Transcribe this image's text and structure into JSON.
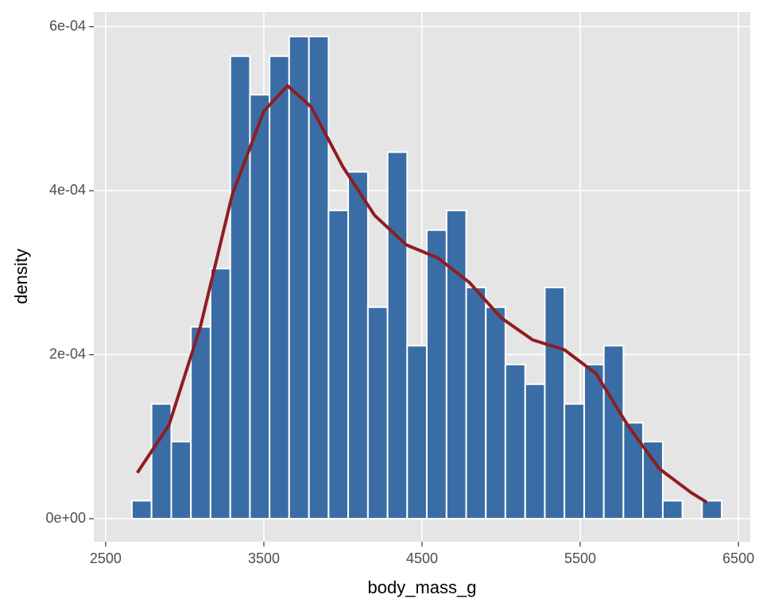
{
  "chart_data": {
    "type": "histogram",
    "xlabel": "body_mass_g",
    "ylabel": "density",
    "bins": [
      2666,
      2790,
      2915,
      3039,
      3163,
      3288,
      3412,
      3536,
      3660,
      3785,
      3909,
      4033,
      4158,
      4282,
      4406,
      4530,
      4655,
      4779,
      4903,
      5027,
      5152,
      5276,
      5400,
      5525,
      5649,
      5773,
      5897,
      6022,
      6146,
      6270,
      6394
    ],
    "counts": [
      2.2e-05,
      0.00014,
      9.4e-05,
      0.000234,
      0.000305,
      0.000564,
      0.000517,
      0.000564,
      0.000588,
      0.000588,
      0.000376,
      0.000423,
      0.000258,
      0.000447,
      0.000211,
      0.000352,
      0.000376,
      0.000282,
      0.000258,
      0.000188,
      0.000164,
      0.000282,
      0.00014,
      0.000188,
      0.000211,
      0.000117,
      9.4e-05,
      2.2e-05,
      0,
      2.2e-05
    ],
    "color": "#3a6da5",
    "edgecolor": "#ffffff",
    "density": {
      "color": "#8f1d22",
      "x": [
        2700,
        2900,
        3100,
        3300,
        3500,
        3650,
        3800,
        4000,
        4200,
        4400,
        4600,
        4800,
        5000,
        5200,
        5400,
        5600,
        5800,
        6000,
        6200,
        6300
      ],
      "y": [
        5.6e-05,
        0.000114,
        0.000235,
        0.000395,
        0.000497,
        0.000528,
        0.000502,
        0.000429,
        0.00037,
        0.000334,
        0.000318,
        0.000288,
        0.000245,
        0.000218,
        0.000206,
        0.000177,
        0.000114,
        6.1e-05,
        3.2e-05,
        2e-05
      ]
    },
    "xlim": [
      2425,
      6575
    ],
    "ylim": [
      -2.8e-05,
      0.000618
    ],
    "xticks": [
      2500,
      3500,
      4500,
      5500,
      6500
    ],
    "yticks": [
      {
        "value": 0,
        "label": "0e+00"
      },
      {
        "value": 0.0002,
        "label": "2e-04"
      },
      {
        "value": 0.0004,
        "label": "4e-04"
      },
      {
        "value": 0.0006,
        "label": "6e-04"
      }
    ],
    "grid": true
  }
}
